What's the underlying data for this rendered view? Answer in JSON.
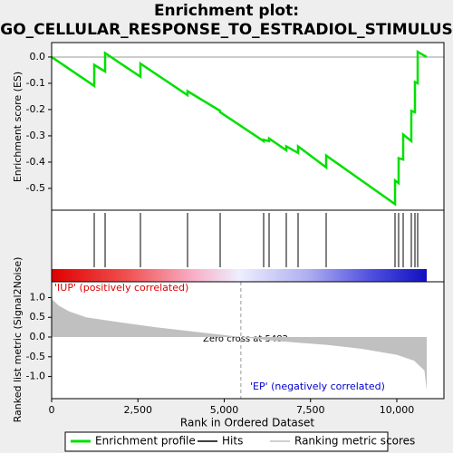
{
  "chart_data": [
    {
      "type": "line",
      "title": "Enrichment plot:",
      "subtitle": "GO_CELLULAR_RESPONSE_TO_ESTRADIOL_STIMULUS",
      "ylabel": "Enrichment score (ES)",
      "xlim": [
        0,
        11365
      ],
      "ylim": [
        -0.583,
        0.055
      ],
      "yticks": [
        {
          "value": 0,
          "label": "0.0"
        },
        -0.1,
        -0.2,
        -0.3,
        -0.4,
        -0.5
      ],
      "x": [
        0,
        1234,
        1234,
        1549,
        1549,
        2572,
        2572,
        3937,
        3937,
        4882,
        4882,
        6142,
        6142,
        6299,
        6299,
        6798,
        6798,
        7139,
        7139,
        7953,
        7953,
        9948,
        9948,
        10052,
        10052,
        10184,
        10184,
        10420,
        10420,
        10525,
        10525,
        10604,
        10604,
        10866
      ],
      "series": [
        {
          "name": "Enrichment profile",
          "color": "#00e000",
          "values": [
            0,
            -0.11,
            -0.03,
            -0.055,
            0.015,
            -0.075,
            -0.025,
            -0.145,
            -0.13,
            -0.205,
            -0.21,
            -0.32,
            -0.315,
            -0.32,
            -0.31,
            -0.355,
            -0.34,
            -0.365,
            -0.34,
            -0.42,
            -0.375,
            -0.56,
            -0.47,
            -0.48,
            -0.385,
            -0.39,
            -0.295,
            -0.32,
            -0.205,
            -0.21,
            -0.095,
            -0.1,
            0.02,
            0
          ]
        }
      ]
    },
    {
      "type": "hits",
      "xlim": [
        0,
        11365
      ],
      "series": [
        {
          "name": "Hits",
          "color": "#000000",
          "values": [
            1234,
            1549,
            2572,
            3937,
            4882,
            6142,
            6299,
            6798,
            7139,
            7953,
            9948,
            10052,
            10184,
            10420,
            10525,
            10604
          ]
        }
      ]
    },
    {
      "type": "area",
      "xlabel": "Rank in Ordered Dataset",
      "ylabel": "Ranked list metric (Signal2Noise)",
      "xlim": [
        0,
        11365
      ],
      "ylim": [
        -1.56,
        1.4
      ],
      "xticks": [
        0,
        {
          "value": 2500,
          "label": "2,500"
        },
        {
          "value": 5000,
          "label": "5,000"
        },
        {
          "value": 7500,
          "label": "7,500"
        },
        {
          "value": 10000,
          "label": "10,000"
        }
      ],
      "yticks": [
        {
          "value": 1,
          "label": "1.0"
        },
        0.5,
        {
          "value": 0,
          "label": "0.0"
        },
        -0.5,
        {
          "value": -1,
          "label": "-1.0"
        }
      ],
      "x": [
        0,
        200,
        500,
        1000,
        2000,
        3000,
        4000,
        5000,
        5482,
        6500,
        8000,
        9000,
        10000,
        10500,
        10800,
        10866
      ],
      "series": [
        {
          "name": "Ranking metric scores",
          "color": "#c0c0c0",
          "values": [
            0.97,
            0.8,
            0.65,
            0.5,
            0.37,
            0.25,
            0.15,
            0.05,
            0,
            -0.1,
            -0.2,
            -0.3,
            -0.45,
            -0.6,
            -0.85,
            -1.35
          ]
        }
      ],
      "zero_cross": 5482,
      "annotations": [
        "'IUP' (positively correlated)",
        "Zero cross at 5482",
        "'EP' (negatively correlated)"
      ]
    }
  ]
}
